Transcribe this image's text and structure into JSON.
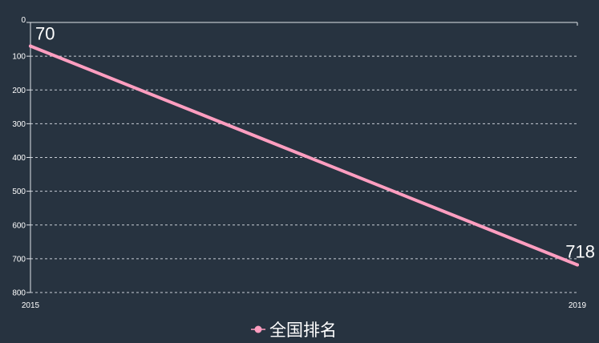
{
  "chart_data": {
    "type": "line",
    "categories": [
      "2015",
      "2019"
    ],
    "series": [
      {
        "name": "全国排名",
        "values": [
          70,
          718
        ],
        "color": "#ff9ec0"
      }
    ],
    "ylim": [
      0,
      800
    ],
    "y_inverted": true,
    "y_ticks": [
      "0",
      "100",
      "200",
      "300",
      "400",
      "500",
      "600",
      "700",
      "800"
    ],
    "grid": "horizontal-dashed",
    "legend_position": "bottom-center",
    "data_labels": true,
    "background": "#273340"
  }
}
